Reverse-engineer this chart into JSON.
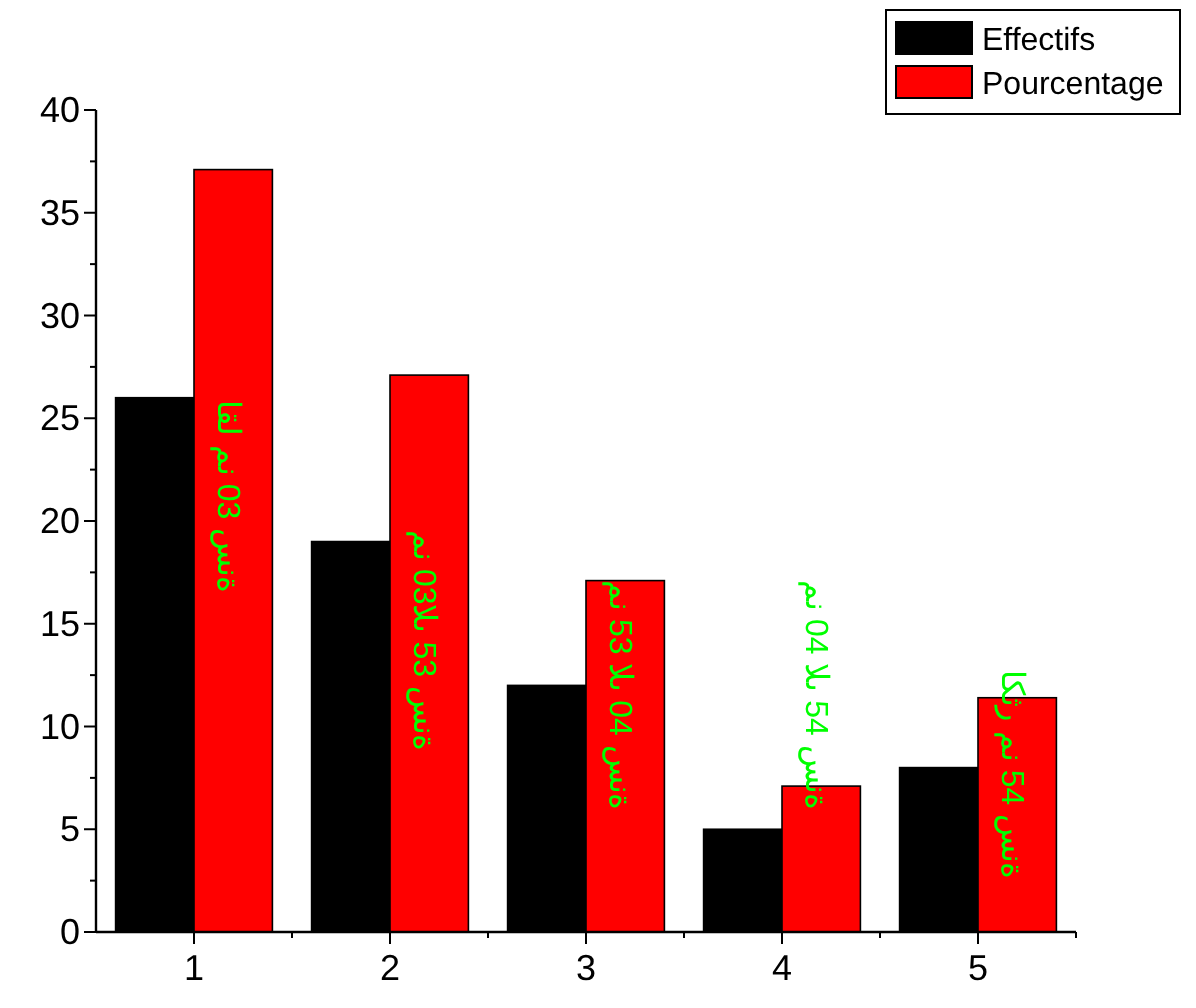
{
  "chart_data": {
    "type": "bar",
    "categories": [
      "1",
      "2",
      "3",
      "4",
      "5"
    ],
    "series": [
      {
        "name": "Effectifs",
        "color": "#000000",
        "values": [
          26,
          19,
          12,
          5,
          8
        ]
      },
      {
        "name": "Pourcentage",
        "color": "#ff0000",
        "values": [
          37.1,
          27.1,
          17.1,
          7.1,
          11.4
        ]
      }
    ],
    "ylim": [
      0,
      40
    ],
    "yticks": [
      0,
      5,
      10,
      15,
      20,
      25,
      30,
      35,
      40
    ],
    "legend": "top right",
    "grid": false,
    "annotations": [
      "اقل من 03 سنة",
      "من 03الى 53 سنة",
      "من 53 الى 04 سنة",
      "من 04 الى 54 سنة",
      "اكثر من 54 سنة"
    ]
  }
}
